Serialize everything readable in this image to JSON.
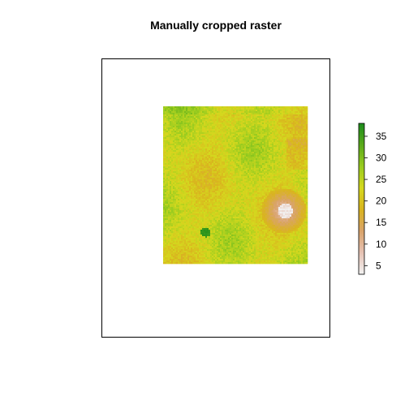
{
  "chart_data": {
    "type": "heatmap",
    "title": "Manually cropped raster",
    "xlabel": "",
    "ylabel": "",
    "grid": false,
    "legend": {
      "kind": "colorbar",
      "placement": "right",
      "range": [
        3,
        38
      ],
      "ticks": [
        5,
        10,
        15,
        20,
        25,
        30,
        35
      ],
      "tick_labels": [
        "5",
        "10",
        "15",
        "20",
        "25",
        "30",
        "35"
      ],
      "colors": [
        "#f2f2f2",
        "#e6c2b4",
        "#d9a36b",
        "#d9b41e",
        "#d5d81e",
        "#99cc1f",
        "#5aaa1a",
        "#1c8c1c"
      ]
    },
    "raster": {
      "typical_value": 23,
      "features": [
        {
          "kind": "low-value patch",
          "value_min": 3,
          "value_max": 8,
          "location": "right-center"
        },
        {
          "kind": "high-value spot",
          "value": 36,
          "location": "lower-left"
        }
      ]
    }
  }
}
